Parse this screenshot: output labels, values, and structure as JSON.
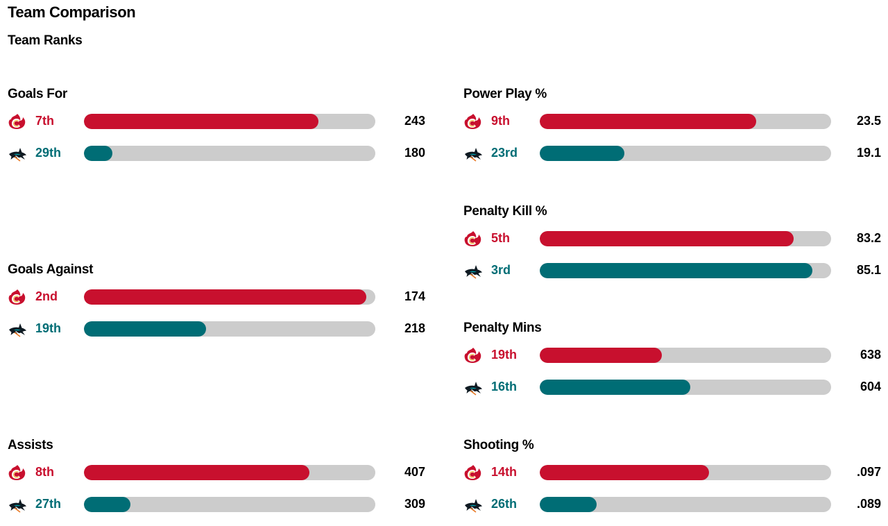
{
  "header": {
    "title": "Team Comparison",
    "subtitle": "Team Ranks"
  },
  "colors": {
    "flames": "#c8102e",
    "sharks": "#006d75",
    "track": "#cccccc"
  },
  "chart_data": {
    "type": "bar",
    "title": "Team Ranks",
    "teams": [
      {
        "key": "flames",
        "logo_icon": "calgary-flames-logo-icon"
      },
      {
        "key": "sharks",
        "logo_icon": "san-jose-sharks-logo-icon"
      }
    ],
    "stats": [
      {
        "label": "Goals For",
        "rows": [
          {
            "team": "flames",
            "rank": "7th",
            "value": "243",
            "fill_fraction": 0.805
          },
          {
            "team": "sharks",
            "rank": "29th",
            "value": "180",
            "fill_fraction": 0.098
          }
        ]
      },
      {
        "label": "Goals Against",
        "rows": [
          {
            "team": "flames",
            "rank": "2nd",
            "value": "174",
            "fill_fraction": 0.968
          },
          {
            "team": "sharks",
            "rank": "19th",
            "value": "218",
            "fill_fraction": 0.419
          }
        ]
      },
      {
        "label": "Assists",
        "rows": [
          {
            "team": "flames",
            "rank": "8th",
            "value": "407",
            "fill_fraction": 0.774
          },
          {
            "team": "sharks",
            "rank": "27th",
            "value": "309",
            "fill_fraction": 0.16
          }
        ]
      },
      {
        "label": "Power Play %",
        "rows": [
          {
            "team": "flames",
            "rank": "9th",
            "value": "23.5",
            "fill_fraction": 0.743
          },
          {
            "team": "sharks",
            "rank": "23rd",
            "value": "19.1",
            "fill_fraction": 0.29
          }
        ]
      },
      {
        "label": "Penalty Kill %",
        "rows": [
          {
            "team": "flames",
            "rank": "5th",
            "value": "83.2",
            "fill_fraction": 0.871
          },
          {
            "team": "sharks",
            "rank": "3rd",
            "value": "85.1",
            "fill_fraction": 0.936
          }
        ]
      },
      {
        "label": "Penalty Mins",
        "rows": [
          {
            "team": "flames",
            "rank": "19th",
            "value": "638",
            "fill_fraction": 0.419
          },
          {
            "team": "sharks",
            "rank": "16th",
            "value": "604",
            "fill_fraction": 0.517
          }
        ]
      },
      {
        "label": "Shooting %",
        "rows": [
          {
            "team": "flames",
            "rank": "14th",
            "value": ".097",
            "fill_fraction": 0.581
          },
          {
            "team": "sharks",
            "rank": "26th",
            "value": ".089",
            "fill_fraction": 0.195
          }
        ]
      }
    ]
  }
}
